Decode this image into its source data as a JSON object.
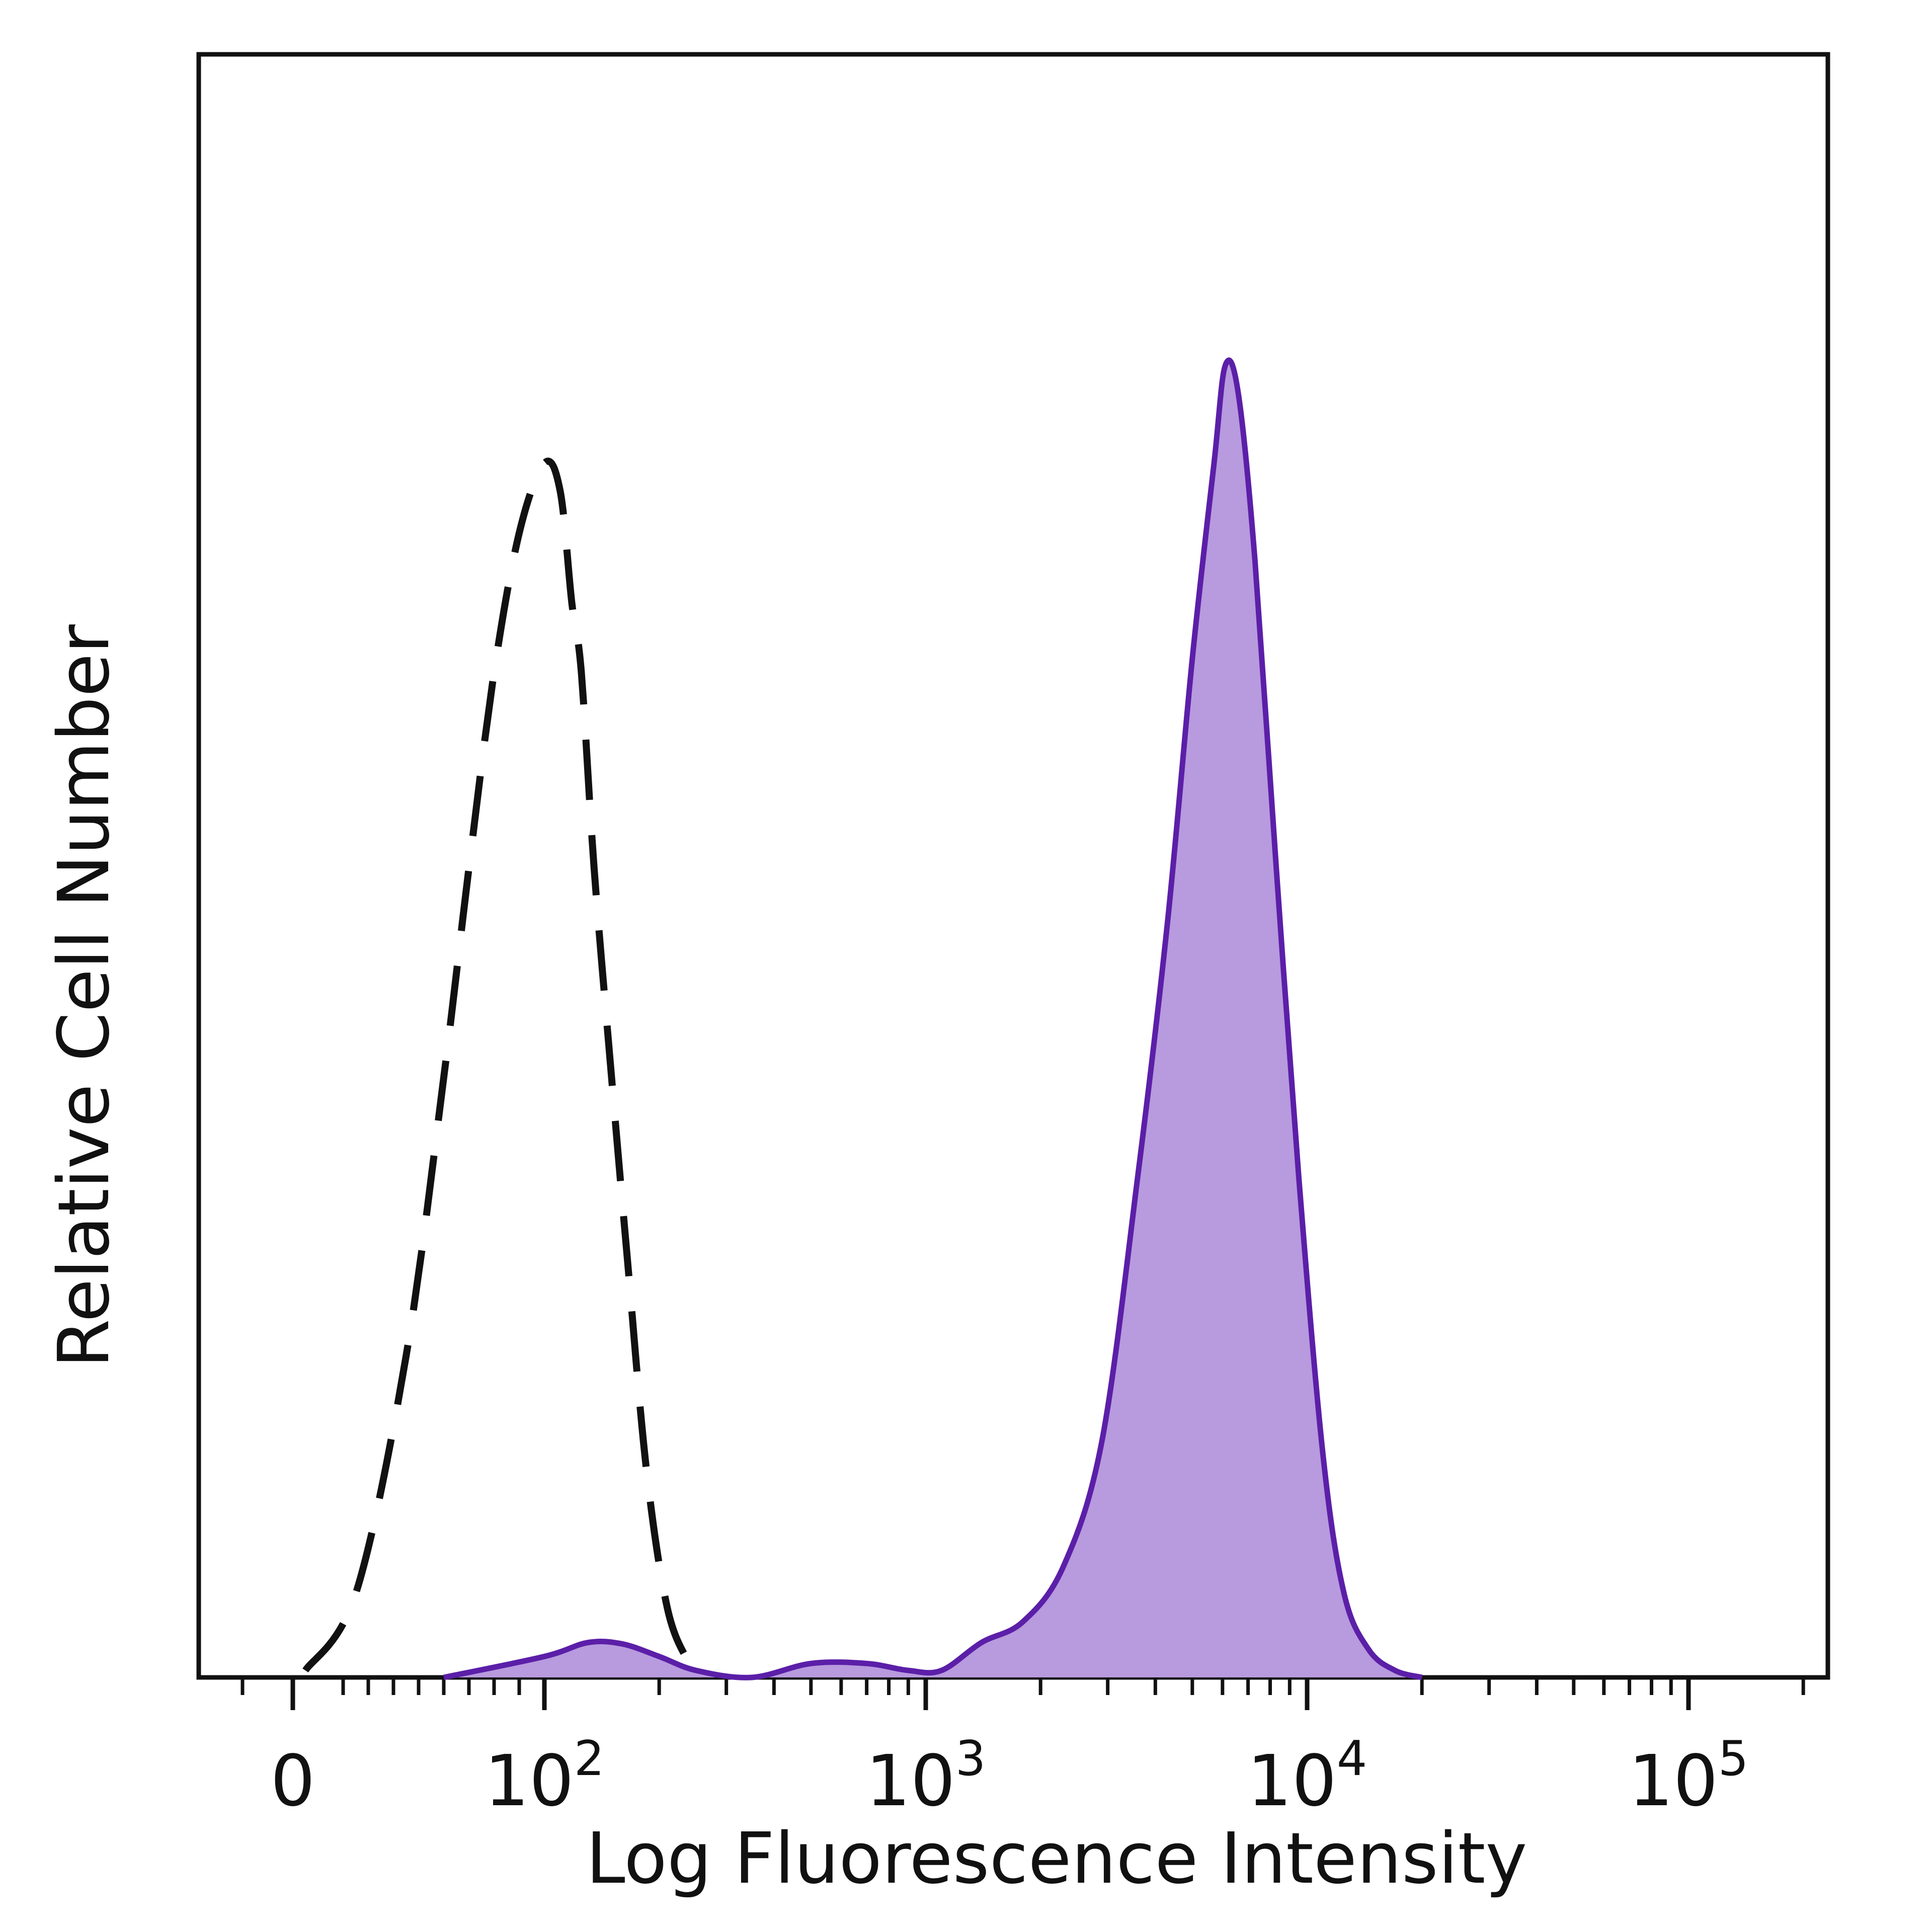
{
  "chart_data": {
    "type": "area",
    "title": "",
    "xlabel": "Log Fluorescence Intensity",
    "ylabel": "Relative Cell Number",
    "x_scale": "biexponential",
    "x_ticks": [
      {
        "value": 0,
        "base": "0",
        "exp": ""
      },
      {
        "value": 100,
        "base": "10",
        "exp": "2"
      },
      {
        "value": 1000,
        "base": "10",
        "exp": "3"
      },
      {
        "value": 10000,
        "base": "10",
        "exp": "4"
      },
      {
        "value": 100000,
        "base": "10",
        "exp": "5"
      }
    ],
    "y_ticks": [],
    "ylim": [
      0,
      100
    ],
    "grid": false,
    "legend": "none",
    "colors": {
      "frame": "#111111",
      "stain_line": "#5b1fa8",
      "stain_fill": "#b89ade",
      "control_line": "#111111"
    },
    "series": [
      {
        "style": "dashed-unfilled",
        "x": [
          5,
          25,
          45,
          60,
          70,
          80,
          90,
          100,
          110,
          118,
          125,
          135,
          150,
          165,
          185,
          210,
          240,
          260
        ],
        "y": [
          0.5,
          6,
          23,
          43,
          58,
          72,
          82,
          87,
          85,
          77,
          72,
          58,
          43,
          30,
          15,
          5,
          1,
          0
        ]
      },
      {
        "style": "solid-filled",
        "x": [
          60,
          100,
          130,
          160,
          200,
          250,
          350,
          500,
          700,
          900,
          1100,
          1400,
          1800,
          2300,
          2900,
          3600,
          4300,
          5000,
          5700,
          6100,
          6600,
          7300,
          8300,
          9500,
          11000,
          12500,
          14500,
          17000,
          20000
        ],
        "y": [
          0,
          1.5,
          2.5,
          2.4,
          1.5,
          0.5,
          0,
          1,
          1,
          0.5,
          0.5,
          2.5,
          4,
          8,
          17,
          36,
          54,
          73,
          87,
          94,
          92,
          80,
          58,
          36,
          16,
          6,
          2,
          0.5,
          0
        ]
      }
    ]
  }
}
